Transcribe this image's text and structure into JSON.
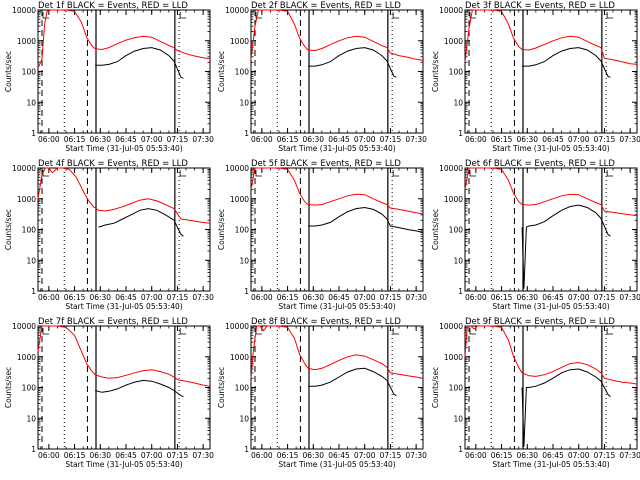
{
  "chart_data": {
    "type": "line",
    "layout": "3x3 grid of panels",
    "y_scale": "log",
    "ylim": [
      1,
      10000
    ],
    "xlim": [
      "05:53:40",
      "07:34:00"
    ],
    "yticks": [
      "1",
      "10",
      "100",
      "1000",
      "10000"
    ],
    "xticks": [
      "06:00",
      "06:15",
      "06:30",
      "06:45",
      "07:00",
      "07:15",
      "07:30"
    ],
    "ylabel": "Counts/sec",
    "xlabel": "Start Time (31-Jul-05 05:53:40)",
    "colors": {
      "events": "#000000",
      "lld": "#ff0000"
    },
    "panels": [
      {
        "title": "Det 1f BLACK = Events, RED = LLD",
        "lld": {
          "x": [
            "05:53:40",
            "05:56:00",
            "05:57:30",
            "05:59:00",
            "06:01:00",
            "06:05:00",
            "06:10:00",
            "06:15:00",
            "06:19:00",
            "06:22:00",
            "06:25:00",
            "06:27:00",
            "06:31:00",
            "06:35:00",
            "06:40:00",
            "06:45:00",
            "06:50:00",
            "06:55:00",
            "07:00:00",
            "07:05:00",
            "07:10:00",
            "07:13:00",
            "07:15:00",
            "07:20:00",
            "07:25:00",
            "07:30:00",
            "07:34:00"
          ],
          "y": [
            130,
            250,
            3500,
            9000,
            10000,
            10000,
            10000,
            9000,
            4000,
            1300,
            700,
            550,
            520,
            600,
            800,
            1050,
            1250,
            1400,
            1300,
            950,
            700,
            600,
            480,
            380,
            320,
            280,
            260
          ]
        },
        "events": {
          "x": [
            "06:27:00",
            "06:31:00",
            "06:35:00",
            "06:40:00",
            "06:45:00",
            "06:50:00",
            "06:55:00",
            "07:00:00",
            "07:05:00",
            "07:10:00",
            "07:13:00",
            "07:17:00",
            "07:18:30"
          ],
          "y": [
            160,
            160,
            170,
            210,
            330,
            460,
            560,
            600,
            500,
            330,
            220,
            65,
            60
          ]
        }
      },
      {
        "title": "Det 2f BLACK = Events, RED = LLD",
        "lld": {
          "x": [
            "05:53:40",
            "05:56:00",
            "05:58:00",
            "06:00:00",
            "06:05:00",
            "06:10:00",
            "06:15:00",
            "06:19:00",
            "06:22:00",
            "06:25:00",
            "06:27:00",
            "06:31:00",
            "06:35:00",
            "06:40:00",
            "06:45:00",
            "06:50:00",
            "06:55:00",
            "07:00:00",
            "07:05:00",
            "07:10:00",
            "07:13:00",
            "07:15:00",
            "07:20:00",
            "07:25:00",
            "07:30:00",
            "07:34:00"
          ],
          "y": [
            250,
            3000,
            10000,
            10000,
            10000,
            10000,
            9000,
            3500,
            1200,
            650,
            500,
            480,
            560,
            750,
            1000,
            1250,
            1400,
            1300,
            950,
            700,
            600,
            400,
            330,
            290,
            250,
            230
          ]
        },
        "events": {
          "x": [
            "06:27:00",
            "06:31:00",
            "06:35:00",
            "06:40:00",
            "06:45:00",
            "06:50:00",
            "06:55:00",
            "07:00:00",
            "07:05:00",
            "07:10:00",
            "07:13:00",
            "07:17:00",
            "07:18:30"
          ],
          "y": [
            150,
            150,
            165,
            210,
            330,
            460,
            560,
            600,
            500,
            330,
            220,
            70,
            65
          ]
        }
      },
      {
        "title": "Det 3f BLACK = Events, RED = LLD",
        "lld": {
          "x": [
            "05:53:40",
            "05:56:00",
            "05:58:00",
            "06:00:00",
            "06:05:00",
            "06:10:00",
            "06:15:00",
            "06:19:00",
            "06:22:00",
            "06:25:00",
            "06:27:00",
            "06:31:00",
            "06:35:00",
            "06:40:00",
            "06:45:00",
            "06:50:00",
            "06:55:00",
            "07:00:00",
            "07:05:00",
            "07:10:00",
            "07:13:00",
            "07:15:00",
            "07:20:00",
            "07:25:00",
            "07:30:00",
            "07:34:00"
          ],
          "y": [
            200,
            2500,
            10000,
            10000,
            10000,
            10000,
            9000,
            3500,
            1200,
            650,
            520,
            500,
            580,
            760,
            1000,
            1250,
            1400,
            1300,
            950,
            700,
            600,
            270,
            240,
            210,
            180,
            170
          ]
        },
        "events": {
          "x": [
            "06:27:00",
            "06:31:00",
            "06:35:00",
            "06:40:00",
            "06:45:00",
            "06:50:00",
            "06:55:00",
            "07:00:00",
            "07:05:00",
            "07:10:00",
            "07:13:00",
            "07:17:00",
            "07:18:30"
          ],
          "y": [
            150,
            150,
            165,
            210,
            330,
            460,
            560,
            600,
            500,
            330,
            220,
            70,
            65
          ]
        }
      },
      {
        "title": "Det 4f BLACK = Events, RED = LLD",
        "lld": {
          "x": [
            "05:53:40",
            "05:56:00",
            "05:58:00",
            "06:00:00",
            "06:02:00",
            "06:05:00",
            "06:08:00",
            "06:12:00",
            "06:16:00",
            "06:20:00",
            "06:23:00",
            "06:26:00",
            "06:29:00",
            "06:33:00",
            "06:38:00",
            "06:43:00",
            "06:48:00",
            "06:53:00",
            "06:58:00",
            "07:03:00",
            "07:08:00",
            "07:13:00",
            "07:17:00",
            "07:22:00",
            "07:27:00",
            "07:34:00"
          ],
          "y": [
            1000,
            6000,
            10000,
            10000,
            7000,
            10000,
            10000,
            9000,
            5000,
            1800,
            900,
            550,
            420,
            400,
            450,
            550,
            700,
            900,
            1000,
            850,
            650,
            480,
            220,
            200,
            180,
            160
          ]
        },
        "events": {
          "x": [
            "06:29:00",
            "06:33:00",
            "06:38:00",
            "06:43:00",
            "06:48:00",
            "06:53:00",
            "06:58:00",
            "07:03:00",
            "07:08:00",
            "07:13:00",
            "07:17:00",
            "07:18:30"
          ],
          "y": [
            120,
            140,
            160,
            220,
            300,
            420,
            480,
            420,
            300,
            200,
            70,
            60
          ]
        }
      },
      {
        "title": "Det 5f BLACK = Events, RED = LLD",
        "lld": {
          "x": [
            "05:53:40",
            "05:56:00",
            "05:58:00",
            "06:00:00",
            "06:05:00",
            "06:10:00",
            "06:15:00",
            "06:19:00",
            "06:22:00",
            "06:25:00",
            "06:27:00",
            "06:31:00",
            "06:35:00",
            "06:40:00",
            "06:45:00",
            "06:50:00",
            "06:55:00",
            "07:00:00",
            "07:05:00",
            "07:10:00",
            "07:13:00",
            "07:15:00",
            "07:20:00",
            "07:25:00",
            "07:30:00",
            "07:34:00"
          ],
          "y": [
            2000,
            10000,
            10000,
            10000,
            10000,
            10000,
            9000,
            4000,
            1500,
            800,
            650,
            620,
            650,
            800,
            1000,
            1250,
            1400,
            1350,
            1000,
            750,
            650,
            500,
            450,
            400,
            350,
            320
          ]
        },
        "events": {
          "x": [
            "06:27:00",
            "06:31:00",
            "06:35:00",
            "06:40:00",
            "06:45:00",
            "06:50:00",
            "06:55:00",
            "07:00:00",
            "07:05:00",
            "07:10:00",
            "07:13:00",
            "07:15:00",
            "07:20:00",
            "07:25:00",
            "07:30:00",
            "07:34:00"
          ],
          "y": [
            130,
            130,
            140,
            170,
            260,
            380,
            480,
            520,
            450,
            320,
            220,
            130,
            115,
            100,
            90,
            80
          ]
        }
      },
      {
        "title": "Det 6f BLACK = Events, RED = LLD",
        "lld": {
          "x": [
            "05:53:40",
            "05:56:00",
            "05:58:00",
            "06:00:00",
            "06:05:00",
            "06:10:00",
            "06:15:00",
            "06:19:00",
            "06:22:00",
            "06:25:00",
            "06:27:00",
            "06:31:00",
            "06:35:00",
            "06:40:00",
            "06:45:00",
            "06:50:00",
            "06:55:00",
            "07:00:00",
            "07:05:00",
            "07:10:00",
            "07:13:00",
            "07:15:00",
            "07:20:00",
            "07:25:00",
            "07:30:00",
            "07:34:00"
          ],
          "y": [
            2000,
            10000,
            10000,
            10000,
            10000,
            10000,
            9000,
            4000,
            1500,
            800,
            650,
            620,
            650,
            800,
            1000,
            1250,
            1400,
            1350,
            1000,
            750,
            650,
            400,
            360,
            330,
            300,
            280
          ]
        },
        "events": {
          "x": [
            "06:27:00",
            "06:28:00",
            "06:29:30",
            "06:31:00",
            "06:35:00",
            "06:40:00",
            "06:45:00",
            "06:50:00",
            "06:55:00",
            "07:00:00",
            "07:05:00",
            "07:10:00",
            "07:13:00",
            "07:17:00",
            "07:18:30"
          ],
          "y": [
            120,
            1.2,
            120,
            130,
            140,
            180,
            280,
            420,
            560,
            620,
            520,
            350,
            230,
            70,
            60
          ]
        }
      },
      {
        "title": "Det 7f BLACK = Events, RED = LLD",
        "lld": {
          "x": [
            "05:53:40",
            "05:56:00",
            "05:58:00",
            "06:00:00",
            "06:05:00",
            "06:10:00",
            "06:15:00",
            "06:19:00",
            "06:22:00",
            "06:25:00",
            "06:27:00",
            "06:31:00",
            "06:35:00",
            "06:40:00",
            "06:45:00",
            "06:50:00",
            "06:55:00",
            "07:00:00",
            "07:05:00",
            "07:10:00",
            "07:13:00",
            "07:15:00",
            "07:20:00",
            "07:25:00",
            "07:30:00",
            "07:34:00"
          ],
          "y": [
            1500,
            10000,
            10000,
            10000,
            10000,
            9000,
            5000,
            1500,
            600,
            350,
            260,
            220,
            200,
            210,
            250,
            300,
            350,
            380,
            330,
            270,
            220,
            180,
            160,
            140,
            120,
            110
          ]
        },
        "events": {
          "x": [
            "06:27:00",
            "06:31:00",
            "06:35:00",
            "06:40:00",
            "06:45:00",
            "06:50:00",
            "06:55:00",
            "07:00:00",
            "07:05:00",
            "07:10:00",
            "07:13:00",
            "07:17:00",
            "07:18:30"
          ],
          "y": [
            80,
            70,
            75,
            90,
            120,
            150,
            170,
            160,
            130,
            100,
            80,
            55,
            50
          ]
        }
      },
      {
        "title": "Det 8f BLACK = Events, RED = LLD",
        "lld": {
          "x": [
            "05:53:40",
            "05:55:00",
            "05:57:00",
            "05:59:00",
            "06:01:00",
            "06:03:00",
            "06:06:00",
            "06:10:00",
            "06:15:00",
            "06:19:00",
            "06:22:00",
            "06:25:00",
            "06:27:00",
            "06:31:00",
            "06:35:00",
            "06:40:00",
            "06:45:00",
            "06:50:00",
            "06:55:00",
            "07:00:00",
            "07:05:00",
            "07:10:00",
            "07:13:00",
            "07:15:00",
            "07:20:00",
            "07:25:00",
            "07:30:00",
            "07:34:00"
          ],
          "y": [
            200,
            1500,
            10000,
            10000,
            7000,
            10000,
            10000,
            10000,
            9000,
            4000,
            1200,
            600,
            420,
            380,
            420,
            560,
            760,
            1000,
            1150,
            1050,
            800,
            600,
            450,
            300,
            270,
            240,
            220,
            200
          ]
        },
        "events": {
          "x": [
            "06:27:00",
            "06:31:00",
            "06:35:00",
            "06:40:00",
            "06:45:00",
            "06:50:00",
            "06:55:00",
            "07:00:00",
            "07:05:00",
            "07:10:00",
            "07:13:00",
            "07:17:00",
            "07:18:30"
          ],
          "y": [
            110,
            110,
            120,
            150,
            220,
            320,
            400,
            420,
            330,
            230,
            170,
            60,
            55
          ]
        }
      },
      {
        "title": "Det 9f BLACK = Events, RED = LLD",
        "lld": {
          "x": [
            "05:53:40",
            "05:55:00",
            "05:57:00",
            "05:59:00",
            "06:01:00",
            "06:05:00",
            "06:10:00",
            "06:15:00",
            "06:19:00",
            "06:22:00",
            "06:25:00",
            "06:27:00",
            "06:31:00",
            "06:35:00",
            "06:40:00",
            "06:45:00",
            "06:50:00",
            "06:55:00",
            "07:00:00",
            "07:05:00",
            "07:10:00",
            "07:13:00",
            "07:15:00",
            "07:20:00",
            "07:25:00",
            "07:30:00",
            "07:34:00"
          ],
          "y": [
            1000,
            10000,
            10000,
            8000,
            10000,
            10000,
            10000,
            9000,
            3500,
            1000,
            450,
            300,
            240,
            230,
            260,
            330,
            450,
            600,
            650,
            550,
            400,
            300,
            200,
            170,
            150,
            140,
            130
          ]
        },
        "events": {
          "x": [
            "06:27:00",
            "06:28:00",
            "06:29:30",
            "06:31:00",
            "06:35:00",
            "06:40:00",
            "06:45:00",
            "06:50:00",
            "06:55:00",
            "07:00:00",
            "07:05:00",
            "07:10:00",
            "07:13:00",
            "07:17:00",
            "07:18:30"
          ],
          "y": [
            100,
            1.2,
            100,
            100,
            110,
            140,
            200,
            300,
            380,
            400,
            320,
            220,
            160,
            60,
            50
          ]
        }
      }
    ]
  }
}
